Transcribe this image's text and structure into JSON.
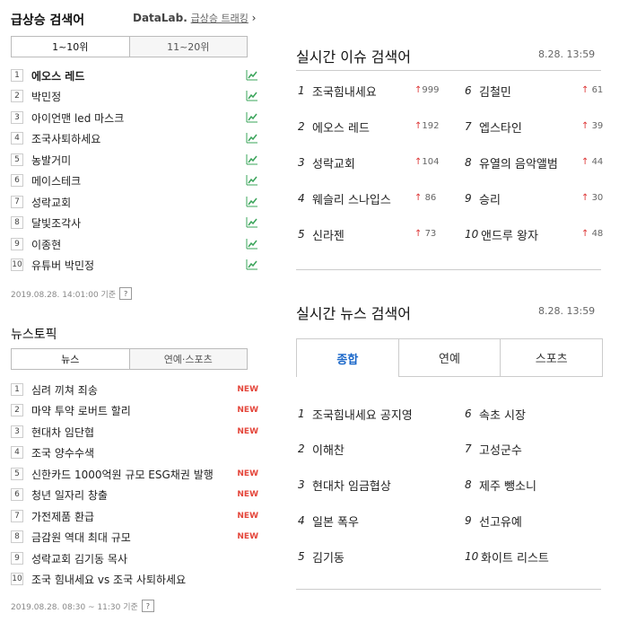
{
  "left": {
    "rising": {
      "title": "급상승 검색어",
      "datalab": "DataLab.",
      "trend_link": "급상승 트래킹",
      "tabs": [
        "1~10위",
        "11~20위"
      ],
      "items": [
        {
          "rank": "1",
          "label": "에오스 레드"
        },
        {
          "rank": "2",
          "label": "박민정"
        },
        {
          "rank": "3",
          "label": "아이언맨 led 마스크"
        },
        {
          "rank": "4",
          "label": "조국사퇴하세요"
        },
        {
          "rank": "5",
          "label": "농발거미"
        },
        {
          "rank": "6",
          "label": "메이스테크"
        },
        {
          "rank": "7",
          "label": "성락교회"
        },
        {
          "rank": "8",
          "label": "달빛조각사"
        },
        {
          "rank": "9",
          "label": "이종현"
        },
        {
          "rank": "10",
          "label": "유튜버 박민정"
        }
      ],
      "timestamp": "2019.08.28. 14:01:00 기준",
      "help": "?"
    },
    "news": {
      "title": "뉴스토픽",
      "tabs": [
        "뉴스",
        "연예·스포츠"
      ],
      "items": [
        {
          "rank": "1",
          "label": "심려 끼쳐 죄송",
          "tag": "NEW"
        },
        {
          "rank": "2",
          "label": "마약 투약 로버트 할리",
          "tag": "NEW"
        },
        {
          "rank": "3",
          "label": "현대차 임단협",
          "tag": "NEW"
        },
        {
          "rank": "4",
          "label": "조국 양수수색",
          "tag": ""
        },
        {
          "rank": "5",
          "label": "신한카드 1000억원 규모 ESG채권 발행",
          "tag": "NEW"
        },
        {
          "rank": "6",
          "label": "청년 일자리 창출",
          "tag": "NEW"
        },
        {
          "rank": "7",
          "label": "가전제품 환급",
          "tag": "NEW"
        },
        {
          "rank": "8",
          "label": "금감원 역대 최대 규모",
          "tag": "NEW"
        },
        {
          "rank": "9",
          "label": "성락교회 김기동 목사",
          "tag": ""
        },
        {
          "rank": "10",
          "label": "조국 힘내세요 vs 조국 사퇴하세요",
          "tag": ""
        }
      ],
      "timestamp": "2019.08.28. 08:30 ~ 11:30 기준",
      "help": "?"
    }
  },
  "right": {
    "issue": {
      "title": "실시간 이슈 검색어",
      "time": "8.28. 13:59",
      "items": [
        {
          "rank": "1",
          "label": "조국힘내세요",
          "change": "999"
        },
        {
          "rank": "2",
          "label": "에오스 레드",
          "change": "192"
        },
        {
          "rank": "3",
          "label": "성락교회",
          "change": "104"
        },
        {
          "rank": "4",
          "label": "웨슬리 스나입스",
          "change": "86"
        },
        {
          "rank": "5",
          "label": "신라젠",
          "change": "73"
        },
        {
          "rank": "6",
          "label": "김철민",
          "change": "61"
        },
        {
          "rank": "7",
          "label": "엡스타인",
          "change": "39"
        },
        {
          "rank": "8",
          "label": "유열의 음악앨범",
          "change": "44"
        },
        {
          "rank": "9",
          "label": "승리",
          "change": "30"
        },
        {
          "rank": "10",
          "label": "앤드루 왕자",
          "change": "48"
        }
      ]
    },
    "news": {
      "title": "실시간 뉴스 검색어",
      "time": "8.28. 13:59",
      "tabs": [
        "종합",
        "연예",
        "스포츠"
      ],
      "items": [
        {
          "rank": "1",
          "label": "조국힘내세요 공지영"
        },
        {
          "rank": "2",
          "label": "이해찬"
        },
        {
          "rank": "3",
          "label": "현대차 임금협상"
        },
        {
          "rank": "4",
          "label": "일본 폭우"
        },
        {
          "rank": "5",
          "label": "김기동"
        },
        {
          "rank": "6",
          "label": "속초 시장"
        },
        {
          "rank": "7",
          "label": "고성군수"
        },
        {
          "rank": "8",
          "label": "제주 뺑소니"
        },
        {
          "rank": "9",
          "label": "선고유예"
        },
        {
          "rank": "10",
          "label": "화이트 리스트"
        }
      ]
    }
  },
  "colors": {
    "accent_blue": "#1a67c9",
    "new_red": "#e4463b",
    "trend_green": "#3aa45a",
    "up_red": "#d33"
  }
}
